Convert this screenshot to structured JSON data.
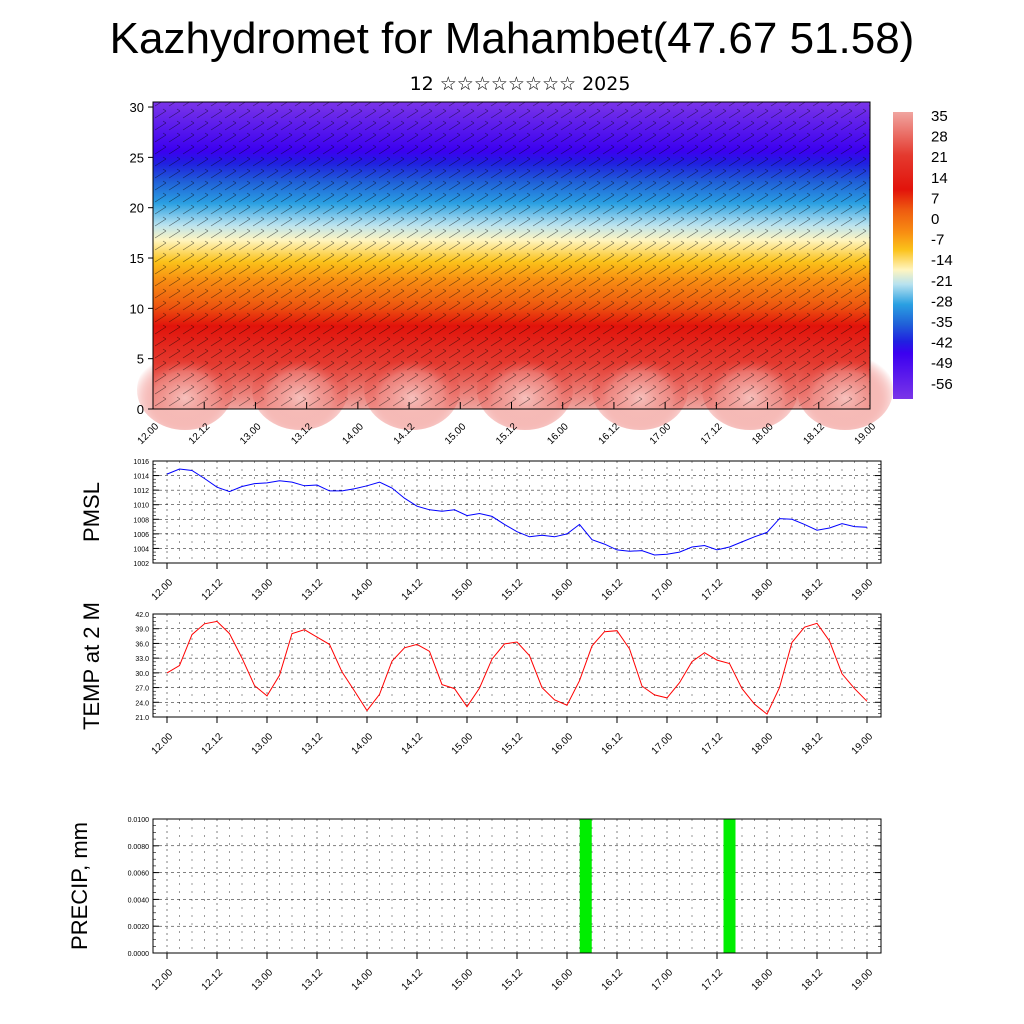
{
  "title": "Kazhydromet for Mahambet(47.67 51.58)",
  "subtitle": "12 ☆☆☆☆☆☆☆☆ 2025",
  "chart_data": [
    {
      "type": "heatmap",
      "x_tick_labels": [
        "12.00",
        "12.12",
        "13.00",
        "13.12",
        "14.00",
        "14.12",
        "15.00",
        "15.12",
        "16.00",
        "16.12",
        "17.00",
        "17.12",
        "18.00",
        "18.12",
        "19.00"
      ],
      "y_ticks": [
        0,
        5,
        10,
        15,
        20,
        25,
        30
      ],
      "ylim": [
        0,
        30.5
      ],
      "colorbar_labels": [
        "35",
        "28",
        "21",
        "14",
        "7",
        "0",
        "-7",
        "-14",
        "-21",
        "-28",
        "-35",
        "-42",
        "-49",
        "-56"
      ],
      "colorbar_colors": [
        "#f5b5b0",
        "#e43a2f",
        "#e2130b",
        "#ee5a10",
        "#f88e12",
        "#fbc21a",
        "#fde86c",
        "#fff5c0",
        "#b8e2ef",
        "#2aa0e2",
        "#2060d8",
        "#2828e8",
        "#3b00f0",
        "#7a35e8"
      ]
    },
    {
      "type": "line",
      "ylabel": "PMSL",
      "ylim": [
        1002,
        1016
      ],
      "y_ticks": [
        1002,
        1004,
        1006,
        1008,
        1010,
        1012,
        1014,
        1016
      ],
      "x_tick_labels": [
        "12.00",
        "12.12",
        "13.00",
        "13.12",
        "14.00",
        "14.12",
        "15.00",
        "15.12",
        "16.00",
        "16.12",
        "17.00",
        "17.12",
        "18.00",
        "18.12",
        "19.00"
      ],
      "series": [
        {
          "color": "#0000ff",
          "values": [
            1014.2,
            1014.9,
            1014.7,
            1013.6,
            1012.4,
            1011.8,
            1012.5,
            1012.9,
            1013.0,
            1013.3,
            1013.1,
            1012.6,
            1012.7,
            1011.9,
            1011.9,
            1012.2,
            1012.6,
            1013.1,
            1012.3,
            1010.9,
            1009.8,
            1009.3,
            1009.1,
            1009.3,
            1008.5,
            1008.8,
            1008.4,
            1007.3,
            1006.3,
            1005.6,
            1005.8,
            1005.6,
            1006.0,
            1007.3,
            1005.2,
            1004.6,
            1003.8,
            1003.6,
            1003.7,
            1003.1,
            1003.2,
            1003.5,
            1004.2,
            1004.4,
            1003.8,
            1004.2,
            1004.9,
            1005.6,
            1006.2,
            1008.1,
            1008.0,
            1007.3,
            1006.5,
            1006.8,
            1007.4,
            1007.0,
            1006.9
          ]
        }
      ]
    },
    {
      "type": "line",
      "ylabel": "TEMP at 2 M",
      "ylim": [
        21.0,
        42.0
      ],
      "y_ticks": [
        "21.0",
        "24.0",
        "27.0",
        "30.0",
        "33.0",
        "36.0",
        "39.0",
        "42.0"
      ],
      "x_tick_labels": [
        "12.00",
        "12.12",
        "13.00",
        "13.12",
        "14.00",
        "14.12",
        "15.00",
        "15.12",
        "16.00",
        "16.12",
        "17.00",
        "17.12",
        "18.00",
        "18.12",
        "19.00"
      ],
      "series": [
        {
          "color": "#ff0000",
          "values": [
            30.0,
            31.5,
            37.8,
            40.0,
            40.5,
            38.0,
            33.0,
            27.4,
            25.3,
            29.5,
            38.0,
            38.8,
            37.3,
            35.8,
            30.2,
            26.3,
            22.3,
            25.6,
            32.4,
            35.1,
            35.8,
            34.4,
            27.6,
            26.8,
            23.1,
            26.9,
            32.8,
            35.9,
            36.3,
            33.5,
            27.0,
            24.5,
            23.4,
            28.4,
            35.5,
            38.4,
            38.6,
            34.9,
            27.3,
            25.5,
            24.9,
            28.0,
            32.3,
            34.1,
            32.6,
            31.9,
            26.8,
            23.6,
            21.6,
            27.0,
            36.2,
            39.3,
            40.1,
            36.5,
            29.8,
            26.8,
            24.2
          ]
        }
      ]
    },
    {
      "type": "bar",
      "ylabel": "PRECIP, mm",
      "ylim": [
        0,
        0.01
      ],
      "y_ticks": [
        "0.0000",
        "0.0020",
        "0.0040",
        "0.0060",
        "0.0080",
        "0.0100"
      ],
      "x_tick_labels": [
        "12.00",
        "12.12",
        "13.00",
        "13.12",
        "14.00",
        "14.12",
        "15.00",
        "15.12",
        "16.00",
        "16.12",
        "17.00",
        "17.12",
        "18.00",
        "18.12",
        "19.00"
      ],
      "bar_color": "#00ee00",
      "bars": [
        {
          "x_step": 33.5,
          "value": 0.01
        },
        {
          "x_step": 45.0,
          "value": 0.01
        }
      ]
    }
  ]
}
